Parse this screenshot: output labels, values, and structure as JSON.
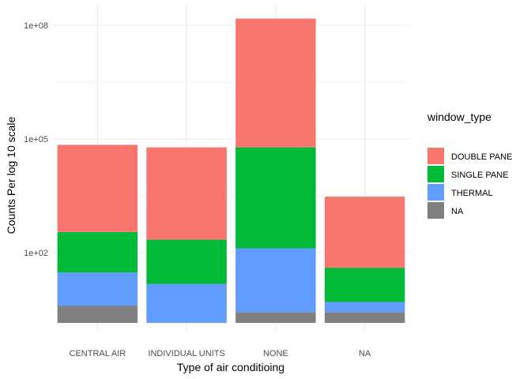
{
  "chart_data": {
    "type": "bar",
    "stacked": true,
    "y_scale": "log10",
    "categories": [
      "CENTRAL AIR",
      "INDIVIDUAL UNITS",
      "NONE",
      "NA"
    ],
    "stack_tops": {
      "CENTRAL AIR": {
        "DOUBLE PANE": 70000,
        "SINGLE PANE": 350,
        "THERMAL": 30,
        "NA": 4
      },
      "INDIVIDUAL UNITS": {
        "DOUBLE PANE": 60000,
        "SINGLE PANE": 220,
        "THERMAL": 15
      },
      "NONE": {
        "DOUBLE PANE": 150000000,
        "SINGLE PANE": 60000,
        "THERMAL": 130,
        "NA": 2.7
      },
      "NA": {
        "DOUBLE PANE": 3000,
        "SINGLE PANE": 40,
        "THERMAL": 5,
        "NA": 2.7
      }
    },
    "series": [
      {
        "name": "DOUBLE PANE",
        "color": "#F8766D"
      },
      {
        "name": "SINGLE PANE",
        "color": "#00BA38"
      },
      {
        "name": "THERMAL",
        "color": "#619CFF"
      },
      {
        "name": "NA",
        "color": "#808080"
      }
    ],
    "y_ticks": [
      {
        "value": 100,
        "label": "1e+02"
      },
      {
        "value": 100000,
        "label": "1e+05"
      },
      {
        "value": 100000000,
        "label": "1e+08"
      }
    ],
    "y_minor_ticks": [
      3.162,
      3162.3,
      3162278
    ],
    "ylim": [
      1,
      800000000
    ],
    "bar_base": 1.4,
    "xlabel": "Type of air conditioing",
    "ylabel": "Counts Per log 10 scale",
    "legend_title": "window_type",
    "legend_position": "right",
    "grid": true,
    "panel_background": "#ffffff",
    "grid_color": "#ebebeb"
  }
}
